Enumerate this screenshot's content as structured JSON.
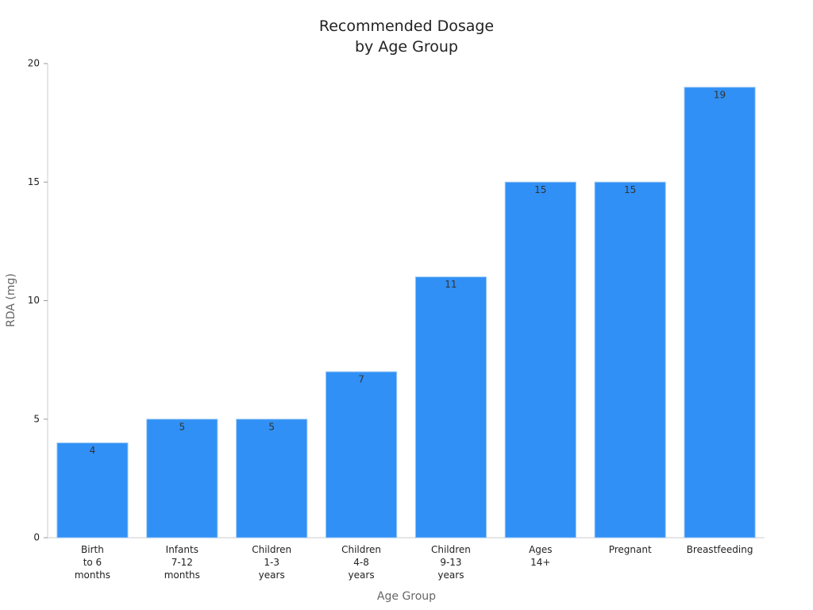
{
  "chart_data": {
    "type": "bar",
    "title": [
      "Recommended Dosage",
      "by Age Group"
    ],
    "x_label": "Age Group",
    "y_label": "RDA (mg)",
    "categories": [
      [
        "Birth",
        "to 6",
        "months"
      ],
      [
        "Infants",
        "7-12",
        "months"
      ],
      [
        "Children",
        "1-3",
        "years"
      ],
      [
        "Children",
        "4-8",
        "years"
      ],
      [
        "Children",
        "9-13",
        "years"
      ],
      [
        "Ages",
        "14+"
      ],
      [
        "Pregnant"
      ],
      [
        "Breastfeeding"
      ]
    ],
    "values": [
      4,
      5,
      5,
      7,
      11,
      15,
      15,
      19
    ],
    "color": "#3090f5",
    "ylim": [
      0,
      20
    ],
    "yticks": [
      0,
      5,
      10,
      15,
      20
    ],
    "grid": false
  }
}
